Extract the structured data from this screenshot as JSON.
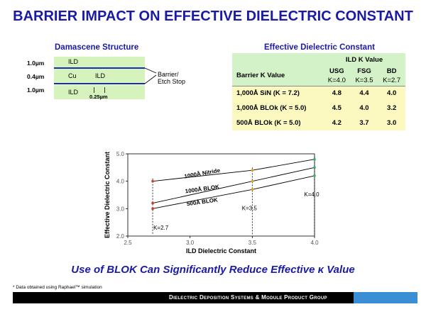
{
  "title": "BARRIER IMPACT ON EFFECTIVE DIELECTRIC CONSTANT",
  "damascene": {
    "heading": "Damascene Structure",
    "dims": [
      "1.0µm",
      "0.4µm",
      "1.0µm"
    ],
    "top_layer": "ILD",
    "mid_cu": "Cu",
    "mid_ild": "ILD",
    "bottom_layer": "ILD",
    "gap_label": "0.25µm",
    "barrier_label_1": "Barrier/",
    "barrier_label_2": "Etch Stop"
  },
  "table": {
    "heading": "Effective Dielectric Constant",
    "group_header": "ILD Κ Value",
    "row_header": "Barrier Κ Value",
    "col_names": [
      "USG",
      "FSG",
      "BD"
    ],
    "col_k": [
      "Κ=4.0",
      "Κ=3.5",
      "Κ=2.7"
    ],
    "rows": [
      {
        "label": "1,000Å SiN (Κ = 7.2)",
        "values": [
          "4.8",
          "4.4",
          "4.0"
        ]
      },
      {
        "label": "1,000Å BLOk (Κ = 5.0)",
        "values": [
          "4.5",
          "4.0",
          "3.2"
        ]
      },
      {
        "label": "500Å BLOk (Κ = 5.0)",
        "values": [
          "4.2",
          "3.7",
          "3.0"
        ]
      }
    ]
  },
  "chart_data": {
    "type": "line",
    "xlabel": "ILD Dielectric Constant",
    "ylabel": "Effective Dielectric Constant",
    "xlim": [
      2.5,
      4.0
    ],
    "ylim": [
      2.0,
      5.0
    ],
    "x_ticks": [
      "2.5",
      "3.0",
      "3.5",
      "4.0"
    ],
    "y_ticks": [
      "2.0",
      "3.0",
      "4.0",
      "5.0"
    ],
    "x": [
      2.7,
      3.5,
      4.0
    ],
    "series": [
      {
        "name": "1000Å Nitride",
        "values": [
          4.0,
          4.4,
          4.8
        ]
      },
      {
        "name": "1000Å BLOΚ",
        "values": [
          3.2,
          4.0,
          4.5
        ]
      },
      {
        "name": "500Å BLOΚ",
        "values": [
          3.0,
          3.7,
          4.2
        ]
      }
    ],
    "vlines": [
      2.7,
      3.5,
      4.0
    ],
    "annotations": [
      "Κ=2.7",
      "Κ=3.5",
      "Κ=4.0"
    ],
    "grid": false,
    "colors": {
      "series_line": "#000000",
      "points_x27": "#e03020",
      "points_x35": "#e8a020",
      "points_x40": "#30b060"
    }
  },
  "subtitle": "Use of BLOΚ Can Significantly Reduce Effective κ Value",
  "footnote": "* Data obtained using Raphael™ simulation",
  "footer": "Dielectric Deposition Systems & Module Product Group"
}
